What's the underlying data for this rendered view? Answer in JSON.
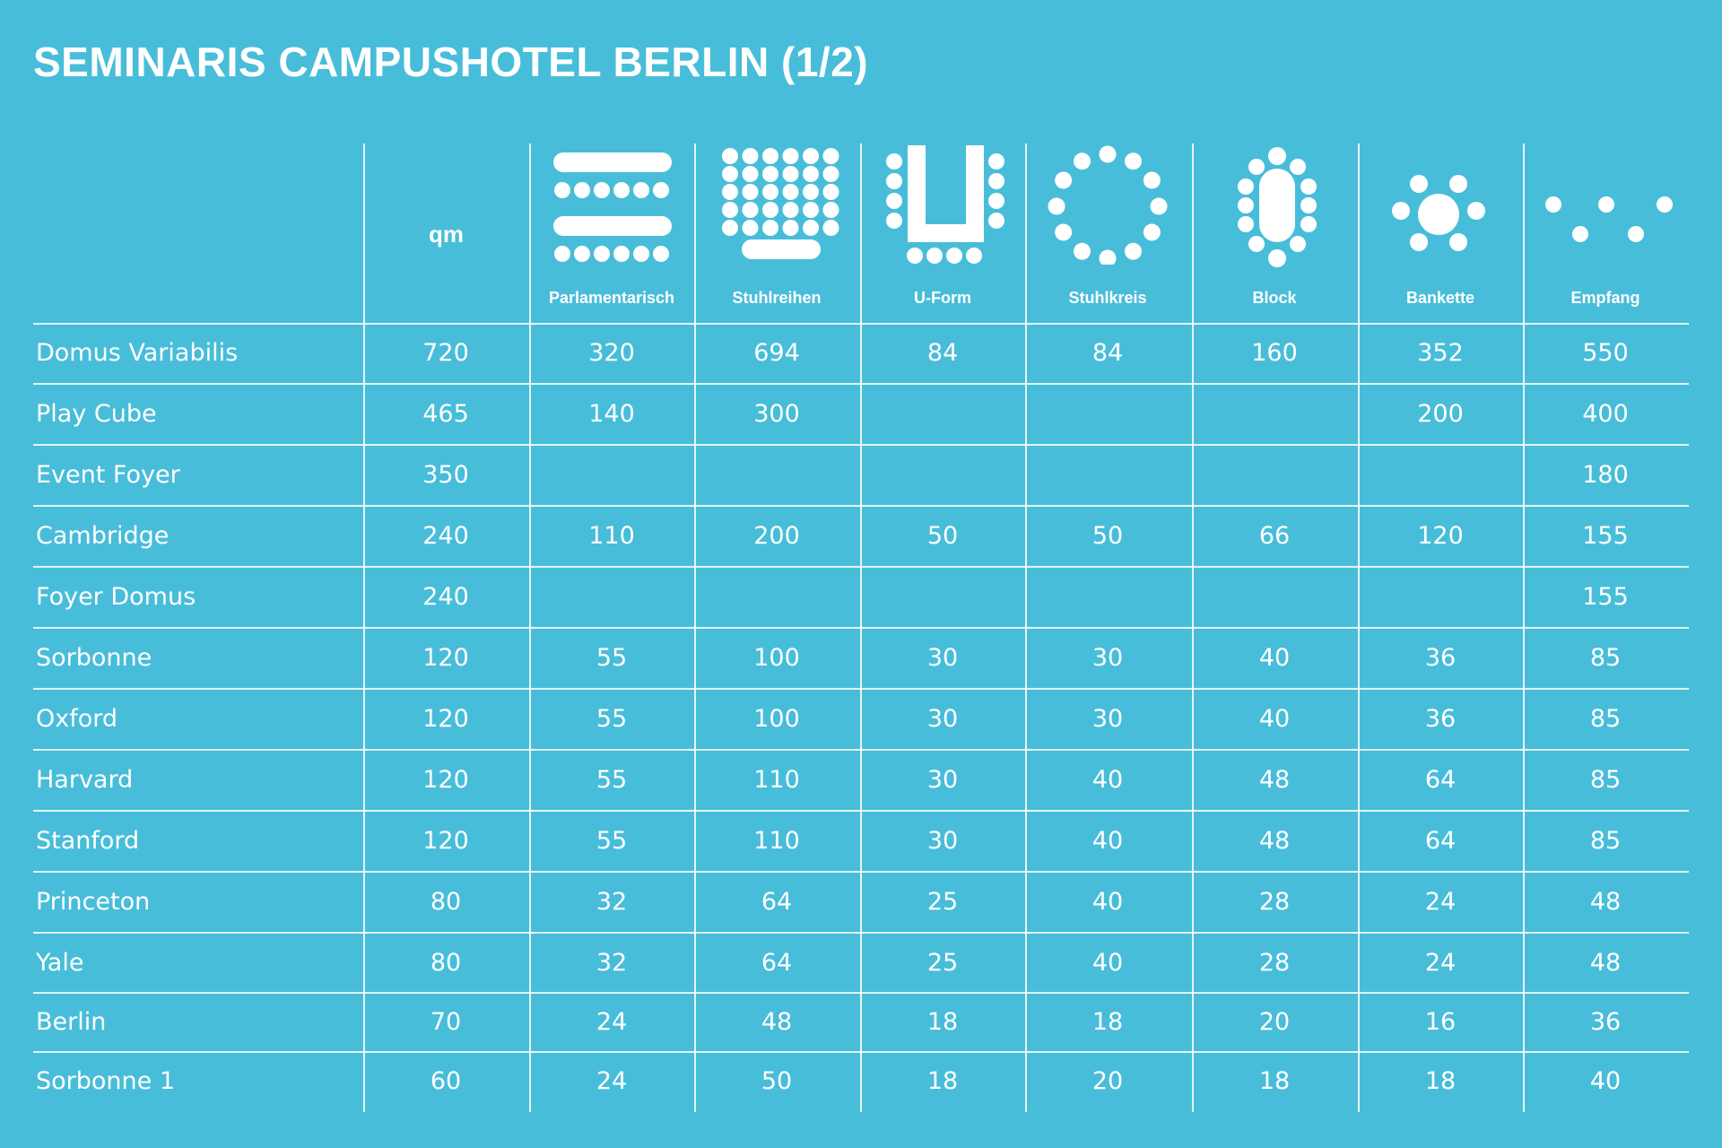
{
  "title": "SEMINARIS CAMPUSHOTEL BERLIN (1/2)",
  "columns": {
    "qm": "qm",
    "setups": [
      {
        "label": "Parlamentarisch",
        "icon": "parliament-seating-icon"
      },
      {
        "label": "Stuhlreihen",
        "icon": "chair-rows-icon"
      },
      {
        "label": "U-Form",
        "icon": "u-shape-icon"
      },
      {
        "label": "Stuhlkreis",
        "icon": "chair-circle-icon"
      },
      {
        "label": "Block",
        "icon": "block-table-icon"
      },
      {
        "label": "Bankette",
        "icon": "banquet-icon"
      },
      {
        "label": "Empfang",
        "icon": "reception-icon"
      }
    ]
  },
  "rows": [
    {
      "name": "Domus Variabilis",
      "values": [
        "720",
        "320",
        "694",
        "84",
        "84",
        "160",
        "352",
        "550"
      ]
    },
    {
      "name": "Play Cube",
      "values": [
        "465",
        "140",
        "300",
        "",
        "",
        "",
        "200",
        "400"
      ]
    },
    {
      "name": "Event Foyer",
      "values": [
        "350",
        "",
        "",
        "",
        "",
        "",
        "",
        "180"
      ]
    },
    {
      "name": "Cambridge",
      "values": [
        "240",
        "110",
        "200",
        "50",
        "50",
        "66",
        "120",
        "155"
      ]
    },
    {
      "name": "Foyer Domus",
      "values": [
        "240",
        "",
        "",
        "",
        "",
        "",
        "",
        "155"
      ]
    },
    {
      "name": "Sorbonne",
      "values": [
        "120",
        "55",
        "100",
        "30",
        "30",
        "40",
        "36",
        "85"
      ]
    },
    {
      "name": "Oxford",
      "values": [
        "120",
        "55",
        "100",
        "30",
        "30",
        "40",
        "36",
        "85"
      ]
    },
    {
      "name": "Harvard",
      "values": [
        "120",
        "55",
        "110",
        "30",
        "40",
        "48",
        "64",
        "85"
      ]
    },
    {
      "name": "Stanford",
      "values": [
        "120",
        "55",
        "110",
        "30",
        "40",
        "48",
        "64",
        "85"
      ]
    },
    {
      "name": "Princeton",
      "values": [
        "80",
        "32",
        "64",
        "25",
        "40",
        "28",
        "24",
        "48"
      ]
    },
    {
      "name": "Yale",
      "values": [
        "80",
        "32",
        "64",
        "25",
        "40",
        "28",
        "24",
        "48"
      ]
    },
    {
      "name": "Berlin",
      "values": [
        "70",
        "24",
        "48",
        "18",
        "18",
        "20",
        "16",
        "36"
      ]
    },
    {
      "name": "Sorbonne 1",
      "values": [
        "60",
        "24",
        "50",
        "18",
        "20",
        "18",
        "18",
        "40"
      ]
    }
  ],
  "colors": {
    "background": "#48bdd9",
    "foreground": "#ffffff"
  }
}
